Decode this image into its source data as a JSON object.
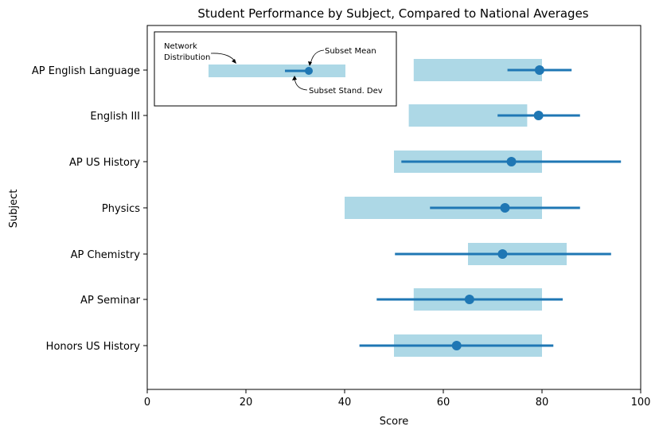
{
  "chart_data": {
    "type": "bar",
    "orientation": "horizontal",
    "title": "Student Performance by Subject, Compared to National Averages",
    "xlabel": "Score",
    "ylabel": "Subject",
    "xlim": [
      0,
      100
    ],
    "xticks": [
      0,
      20,
      40,
      60,
      80,
      100
    ],
    "grid": false,
    "categories": [
      "AP English Language",
      "English III",
      "AP US History",
      "Physics",
      "AP Chemistry",
      "AP Seminar",
      "Honors US History"
    ],
    "series": [
      {
        "name": "Network Distribution",
        "type": "range_bar",
        "color": "#add8e6",
        "ranges": [
          [
            54,
            80
          ],
          [
            53,
            77
          ],
          [
            50,
            80
          ],
          [
            40,
            80
          ],
          [
            65,
            85
          ],
          [
            54,
            80
          ],
          [
            50,
            80
          ]
        ]
      },
      {
        "name": "Subset Mean",
        "type": "point",
        "color": "#1f77b4",
        "values": [
          79.5,
          79.3,
          73.8,
          72.5,
          72.0,
          65.3,
          62.7
        ]
      },
      {
        "name": "Subset Stand. Dev",
        "type": "error_bar",
        "color": "#1f77b4",
        "ranges": [
          [
            73,
            86
          ],
          [
            71,
            87.7
          ],
          [
            51.5,
            96
          ],
          [
            57.3,
            87.7
          ],
          [
            50.2,
            94
          ],
          [
            46.5,
            84.2
          ],
          [
            43,
            82.3
          ]
        ]
      }
    ],
    "legend": {
      "placement": "top-left",
      "labels": {
        "distribution_line1": "Network",
        "distribution_line2": "Distribution",
        "mean": "Subset Mean",
        "stdev": "Subset Stand. Dev"
      }
    }
  }
}
